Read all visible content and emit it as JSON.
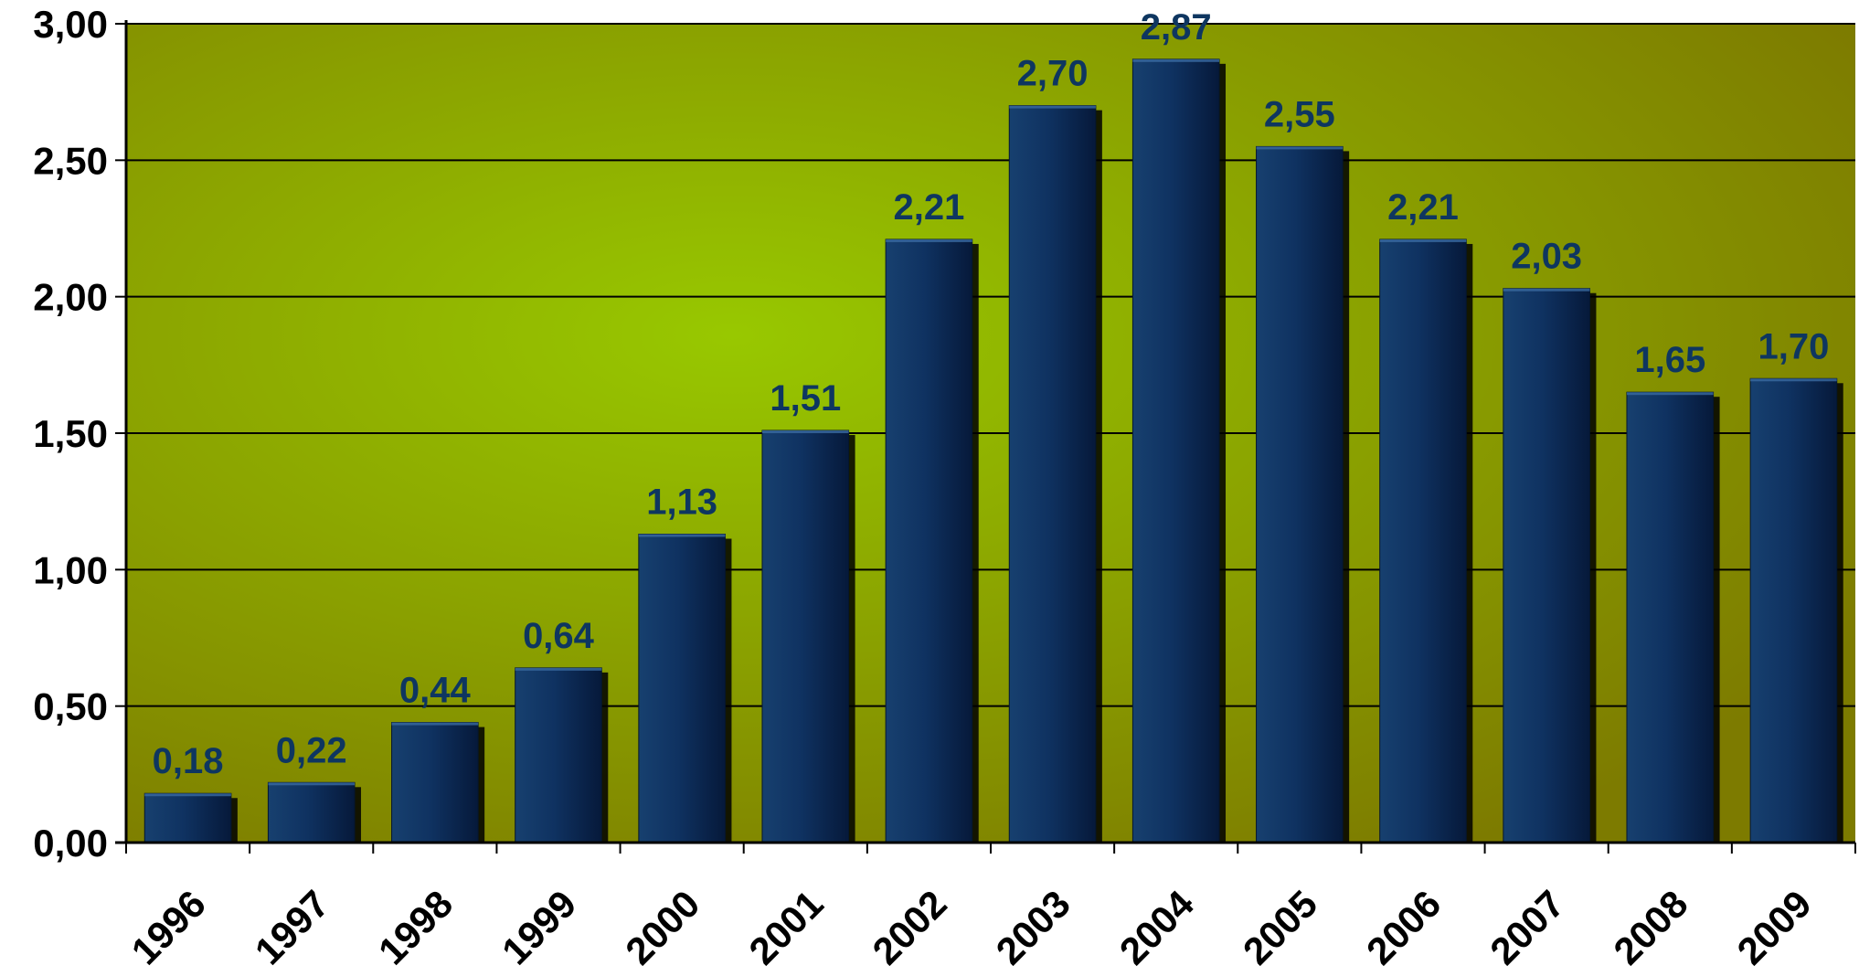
{
  "chart_data": {
    "type": "bar",
    "categories": [
      "1996",
      "1997",
      "1998",
      "1999",
      "2000",
      "2001",
      "2002",
      "2003",
      "2004",
      "2005",
      "2006",
      "2007",
      "2008",
      "2009"
    ],
    "values": [
      0.18,
      0.22,
      0.44,
      0.64,
      1.13,
      1.51,
      2.21,
      2.7,
      2.87,
      2.55,
      2.21,
      2.03,
      1.65,
      1.7
    ],
    "value_labels": [
      "0,18",
      "0,22",
      "0,44",
      "0,64",
      "1,13",
      "1,51",
      "2,21",
      "2,70",
      "2,87",
      "2,55",
      "2,21",
      "2,03",
      "1,65",
      "1,70"
    ],
    "y_ticks": [
      0,
      0.5,
      1.0,
      1.5,
      2.0,
      2.5,
      3.0
    ],
    "y_tick_labels": [
      "0,00",
      "0,50",
      "1,00",
      "1,50",
      "2,00",
      "2,50",
      "3,00"
    ],
    "ylim": [
      0,
      3.0
    ],
    "grid": true,
    "legend": "none",
    "colors": {
      "bar": "#0e2f5c",
      "bar_edge": "#05162e",
      "bar_shadow": "#000000",
      "data_label": "#0e3660",
      "plot_center": "#98c800",
      "plot_edge": "#7d7b00",
      "axis": "#000000"
    }
  }
}
